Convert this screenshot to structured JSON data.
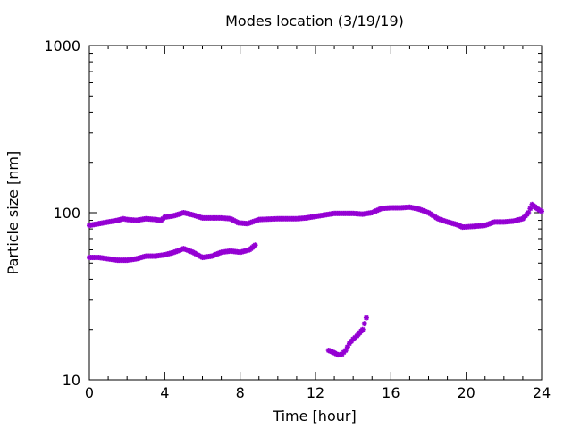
{
  "chart_data": {
    "type": "scatter",
    "title": "Modes location (3/19/19)",
    "xlabel": "Time [hour]",
    "ylabel": "Particle size [nm]",
    "xlim": [
      0,
      24
    ],
    "ylim": [
      10,
      1000
    ],
    "yscale": "log",
    "xticks": [
      0,
      4,
      8,
      12,
      16,
      20,
      24
    ],
    "yticks": [
      10,
      100,
      1000
    ],
    "grid": false,
    "legend": "none",
    "marker_color": "#9400d3",
    "series": [
      {
        "x": [
          0.0,
          0.5,
          1.0,
          1.5,
          1.8,
          2.0,
          2.5,
          3.0,
          3.5,
          3.8,
          4.0,
          4.5,
          5.0,
          5.5,
          6.0,
          6.5,
          7.0,
          7.5,
          7.9,
          8.4,
          9.0,
          10.0,
          11.0,
          11.5,
          12.0,
          12.5,
          13.0,
          13.5,
          14.0,
          14.5,
          15.0,
          15.5,
          16.0,
          16.5,
          17.0,
          17.5,
          18.0,
          18.5,
          19.0,
          19.5,
          19.8,
          20.5,
          21.0,
          21.5,
          22.0,
          22.5,
          23.0,
          23.3,
          23.5,
          23.8,
          24.0
        ],
        "y": [
          84,
          86,
          88,
          90,
          92,
          91,
          90,
          92,
          91,
          90,
          94,
          96,
          100,
          97,
          93,
          93,
          93,
          92,
          87,
          86,
          91,
          92,
          92,
          93,
          95,
          97,
          99,
          99,
          99,
          98,
          100,
          106,
          107,
          107,
          108,
          105,
          100,
          92,
          88,
          85,
          82,
          83,
          84,
          88,
          88,
          89,
          92,
          100,
          112,
          105,
          102
        ]
      },
      {
        "x": [
          0.0,
          0.5,
          1.0,
          1.5,
          2.0,
          2.5,
          3.0,
          3.5,
          4.0,
          4.5,
          5.0,
          5.5,
          6.0,
          6.5,
          7.0,
          7.5,
          8.0,
          8.5,
          8.8
        ],
        "y": [
          54,
          54,
          53,
          52,
          52,
          53,
          55,
          55,
          56,
          58,
          61,
          58,
          54,
          55,
          58,
          59,
          58,
          60,
          64
        ]
      },
      {
        "x": [
          12.7,
          13.0,
          13.2,
          13.4,
          13.6,
          13.8,
          14.0,
          14.2,
          14.5,
          14.7
        ],
        "y": [
          15,
          14.5,
          14.1,
          14.2,
          15,
          16.5,
          17.5,
          18.3,
          20.0,
          23.5
        ]
      }
    ]
  }
}
